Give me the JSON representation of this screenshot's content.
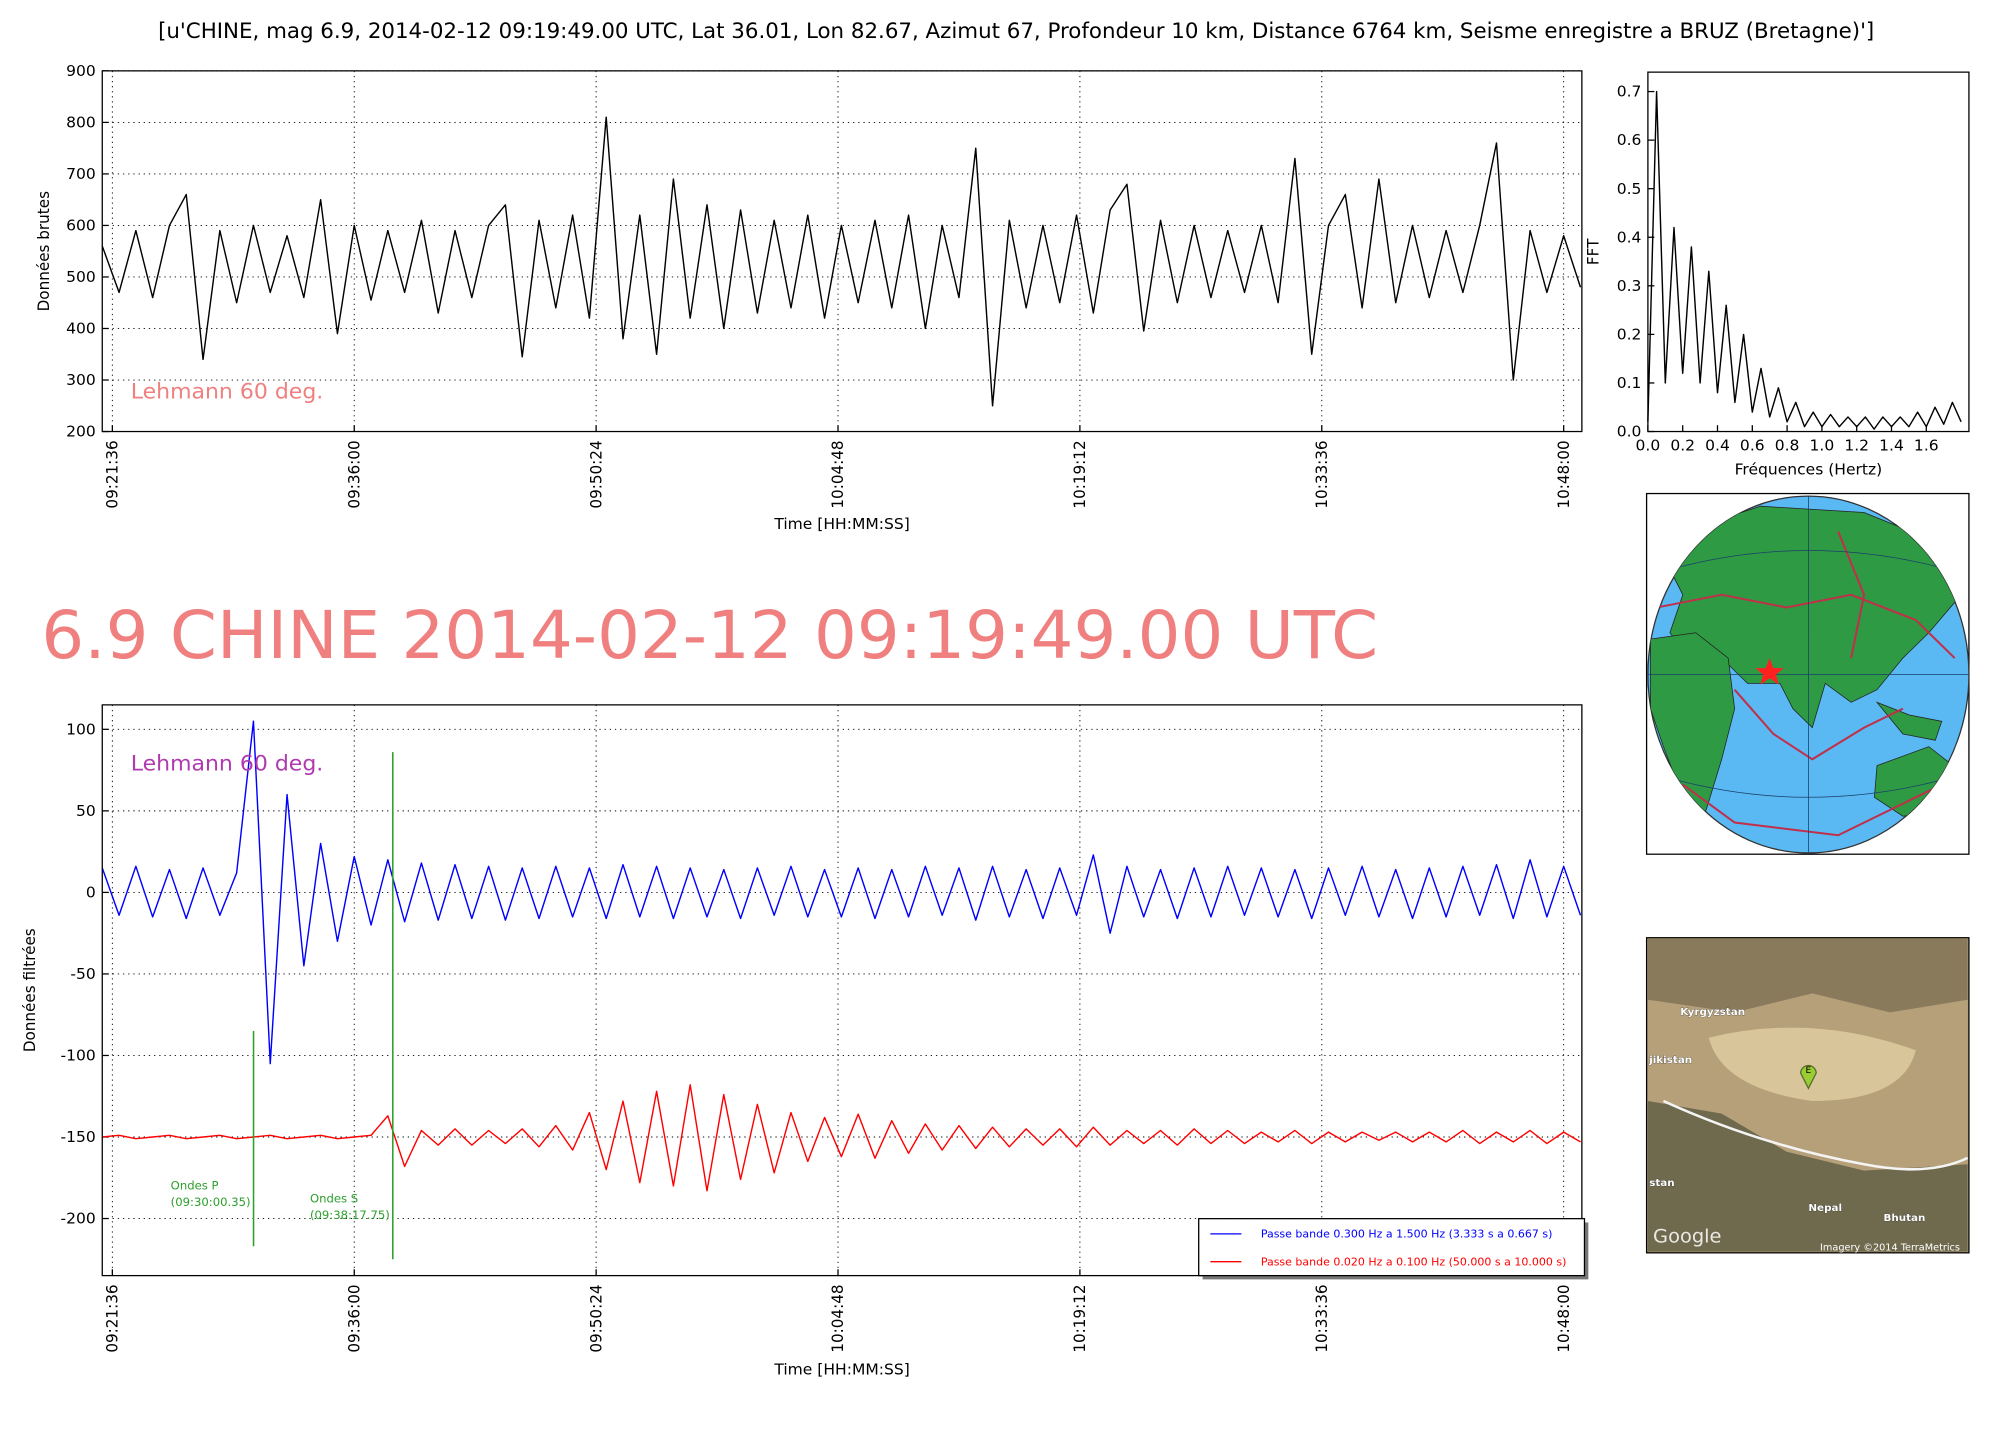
{
  "title": "[u'CHINE, mag 6.9, 2014-02-12 09:19:49.00 UTC, Lat 36.01, Lon 82.67, Azimut  67, Profondeur 10 km, Distance  6764 km, Seisme enregistre a BRUZ (Bretagne)']",
  "headline": "6.9 CHINE 2014-02-12 09:19:49.00 UTC",
  "chart_data": [
    {
      "type": "line",
      "xlabel": "Time [HH:MM:SS]",
      "ylabel": "Données brutes",
      "grid": true,
      "xlim": [
        "09:21:00",
        "10:49:05"
      ],
      "xticks": [
        "09:21:36",
        "09:36:00",
        "09:50:24",
        "10:04:48",
        "10:19:12",
        "10:33:36",
        "10:48:00"
      ],
      "ylim": [
        200,
        900
      ],
      "yticks": [
        200,
        300,
        400,
        500,
        600,
        700,
        800,
        900
      ],
      "annotation": {
        "text": "Lehmann 60 deg.",
        "color": "#f08080"
      },
      "x": [
        "09:21:00",
        "09:22:00",
        "09:23:00",
        "09:24:00",
        "09:25:00",
        "09:26:00",
        "09:27:00",
        "09:28:00",
        "09:29:00",
        "09:30:00",
        "09:31:00",
        "09:32:00",
        "09:33:00",
        "09:34:00",
        "09:35:00",
        "09:36:00",
        "09:37:00",
        "09:38:00",
        "09:39:00",
        "09:40:00",
        "09:41:00",
        "09:42:00",
        "09:43:00",
        "09:44:00",
        "09:45:00",
        "09:46:00",
        "09:47:00",
        "09:48:00",
        "09:49:00",
        "09:50:00",
        "09:51:00",
        "09:52:00",
        "09:53:00",
        "09:54:00",
        "09:55:00",
        "09:56:00",
        "09:57:00",
        "09:58:00",
        "09:59:00",
        "10:00:00",
        "10:01:00",
        "10:02:00",
        "10:03:00",
        "10:04:00",
        "10:05:00",
        "10:06:00",
        "10:07:00",
        "10:08:00",
        "10:09:00",
        "10:10:00",
        "10:11:00",
        "10:12:00",
        "10:13:00",
        "10:14:00",
        "10:15:00",
        "10:16:00",
        "10:17:00",
        "10:18:00",
        "10:19:00",
        "10:20:00",
        "10:21:00",
        "10:22:00",
        "10:23:00",
        "10:24:00",
        "10:25:00",
        "10:26:00",
        "10:27:00",
        "10:28:00",
        "10:29:00",
        "10:30:00",
        "10:31:00",
        "10:32:00",
        "10:33:00",
        "10:34:00",
        "10:35:00",
        "10:36:00",
        "10:37:00",
        "10:38:00",
        "10:39:00",
        "10:40:00",
        "10:41:00",
        "10:42:00",
        "10:43:00",
        "10:44:00",
        "10:45:00",
        "10:46:00",
        "10:47:00",
        "10:48:00",
        "10:49:00"
      ],
      "series": [
        {
          "color": "#000000",
          "values": [
            560,
            470,
            590,
            460,
            600,
            660,
            340,
            590,
            450,
            600,
            470,
            580,
            460,
            650,
            390,
            600,
            455,
            590,
            470,
            610,
            430,
            590,
            460,
            600,
            640,
            345,
            610,
            440,
            620,
            420,
            810,
            380,
            620,
            350,
            690,
            420,
            640,
            400,
            630,
            430,
            610,
            440,
            620,
            420,
            600,
            450,
            610,
            440,
            620,
            400,
            600,
            460,
            750,
            250,
            610,
            440,
            600,
            450,
            620,
            430,
            630,
            680,
            395,
            610,
            450,
            600,
            460,
            590,
            470,
            600,
            450,
            730,
            350,
            600,
            660,
            440,
            690,
            450,
            600,
            460,
            590,
            470,
            600,
            760,
            300,
            590,
            470,
            580,
            480
          ]
        }
      ]
    },
    {
      "type": "line",
      "xlabel": "Fréquences (Hertz)",
      "ylabel": "FFT",
      "grid": false,
      "xlim": [
        0,
        1.845
      ],
      "xticks": [
        {
          "value": 0,
          "label": "0.0"
        },
        {
          "value": 0.2,
          "label": "0.2"
        },
        {
          "value": 0.4,
          "label": "0.4"
        },
        {
          "value": 0.6,
          "label": "0.6"
        },
        {
          "value": 0.8,
          "label": "0.8"
        },
        {
          "value": 1,
          "label": "1.0"
        },
        {
          "value": 1.2,
          "label": "1.2"
        },
        {
          "value": 1.4,
          "label": "1.4"
        },
        {
          "value": 1.6,
          "label": "1.6"
        }
      ],
      "ylim": [
        0,
        0.74
      ],
      "yticks": [
        {
          "value": 0,
          "label": "0.0"
        },
        0.1,
        0.2,
        0.3,
        0.4,
        0.5,
        0.6,
        0.7
      ],
      "x": [
        0,
        0.05,
        0.1,
        0.15,
        0.2,
        0.25,
        0.3,
        0.35,
        0.4,
        0.45,
        0.5,
        0.55,
        0.6,
        0.65,
        0.7,
        0.75,
        0.8,
        0.85,
        0.9,
        0.95,
        1,
        1.05,
        1.1,
        1.15,
        1.2,
        1.25,
        1.3,
        1.35,
        1.4,
        1.45,
        1.5,
        1.55,
        1.6,
        1.65,
        1.7,
        1.75,
        1.8
      ],
      "series": [
        {
          "color": "#000000",
          "values": [
            0.02,
            0.7,
            0.1,
            0.42,
            0.12,
            0.38,
            0.1,
            0.33,
            0.08,
            0.26,
            0.06,
            0.2,
            0.04,
            0.13,
            0.03,
            0.09,
            0.02,
            0.06,
            0.01,
            0.04,
            0.01,
            0.035,
            0.01,
            0.03,
            0.01,
            0.03,
            0.005,
            0.03,
            0.01,
            0.03,
            0.01,
            0.04,
            0.01,
            0.05,
            0.015,
            0.06,
            0.02
          ]
        }
      ]
    },
    {
      "type": "line",
      "xlabel": "Time [HH:MM:SS]",
      "ylabel": "Données filtrées",
      "grid": true,
      "legend": "lower right",
      "xlim": [
        "09:21:00",
        "10:49:05"
      ],
      "xticks": [
        "09:21:36",
        "09:36:00",
        "09:50:24",
        "10:04:48",
        "10:19:12",
        "10:33:36",
        "10:48:00"
      ],
      "ylim": [
        -235,
        115
      ],
      "yticks": [
        -200,
        -150,
        -100,
        -50,
        0,
        50,
        100
      ],
      "annotation": {
        "text": "Lehmann 60 deg.",
        "color": "#b03ab0"
      },
      "markers": [
        {
          "x": "09:30:00.35",
          "ylim": [
            -217,
            -85
          ],
          "text": "Ondes P",
          "time": "(09:30:00.35)",
          "color": "#2ca02c"
        },
        {
          "x": "09:38:17.75",
          "ylim": [
            -225,
            86
          ],
          "text": "Ondes S",
          "time": "(09:38:17.75)",
          "color": "#2ca02c"
        }
      ],
      "x": [
        "09:21:00",
        "09:22:00",
        "09:23:00",
        "09:24:00",
        "09:25:00",
        "09:26:00",
        "09:27:00",
        "09:28:00",
        "09:29:00",
        "09:30:00",
        "09:31:00",
        "09:32:00",
        "09:33:00",
        "09:34:00",
        "09:35:00",
        "09:36:00",
        "09:37:00",
        "09:38:00",
        "09:39:00",
        "09:40:00",
        "09:41:00",
        "09:42:00",
        "09:43:00",
        "09:44:00",
        "09:45:00",
        "09:46:00",
        "09:47:00",
        "09:48:00",
        "09:49:00",
        "09:50:00",
        "09:51:00",
        "09:52:00",
        "09:53:00",
        "09:54:00",
        "09:55:00",
        "09:56:00",
        "09:57:00",
        "09:58:00",
        "09:59:00",
        "10:00:00",
        "10:01:00",
        "10:02:00",
        "10:03:00",
        "10:04:00",
        "10:05:00",
        "10:06:00",
        "10:07:00",
        "10:08:00",
        "10:09:00",
        "10:10:00",
        "10:11:00",
        "10:12:00",
        "10:13:00",
        "10:14:00",
        "10:15:00",
        "10:16:00",
        "10:17:00",
        "10:18:00",
        "10:19:00",
        "10:20:00",
        "10:21:00",
        "10:22:00",
        "10:23:00",
        "10:24:00",
        "10:25:00",
        "10:26:00",
        "10:27:00",
        "10:28:00",
        "10:29:00",
        "10:30:00",
        "10:31:00",
        "10:32:00",
        "10:33:00",
        "10:34:00",
        "10:35:00",
        "10:36:00",
        "10:37:00",
        "10:38:00",
        "10:39:00",
        "10:40:00",
        "10:41:00",
        "10:42:00",
        "10:43:00",
        "10:44:00",
        "10:45:00",
        "10:46:00",
        "10:47:00",
        "10:48:00",
        "10:49:00"
      ],
      "series": [
        {
          "name": "Passe bande 0.300 Hz a 1.500 Hz (3.333 s a 0.667 s)",
          "color": "#0000ff",
          "values": [
            15,
            -14,
            16,
            -15,
            14,
            -16,
            15,
            -14,
            12,
            105,
            -105,
            60,
            -45,
            30,
            -30,
            22,
            -20,
            20,
            -18,
            18,
            -17,
            17,
            -16,
            16,
            -17,
            15,
            -16,
            16,
            -15,
            15,
            -16,
            17,
            -15,
            16,
            -16,
            15,
            -15,
            14,
            -16,
            15,
            -14,
            16,
            -15,
            14,
            -15,
            15,
            -16,
            14,
            -15,
            16,
            -14,
            15,
            -17,
            16,
            -15,
            14,
            -16,
            15,
            -14,
            23,
            -25,
            16,
            -15,
            14,
            -16,
            15,
            -15,
            16,
            -14,
            15,
            -15,
            14,
            -16,
            15,
            -14,
            16,
            -15,
            14,
            -16,
            15,
            -15,
            16,
            -14,
            17,
            -16,
            20,
            -15,
            16,
            -14
          ]
        },
        {
          "name": "Passe bande 0.020 Hz a 0.100 Hz (50.000 s a 10.000 s)",
          "color": "#ff0000",
          "values": [
            -150,
            -149,
            -151,
            -150,
            -149,
            -151,
            -150,
            -149,
            -151,
            -150,
            -149,
            -151,
            -150,
            -149,
            -151,
            -150,
            -149,
            -137,
            -168,
            -146,
            -155,
            -145,
            -155,
            -146,
            -154,
            -145,
            -156,
            -143,
            -158,
            -135,
            -170,
            -128,
            -178,
            -122,
            -180,
            -118,
            -183,
            -124,
            -176,
            -130,
            -172,
            -135,
            -165,
            -138,
            -162,
            -136,
            -163,
            -140,
            -160,
            -142,
            -158,
            -143,
            -157,
            -144,
            -156,
            -145,
            -155,
            -145,
            -156,
            -144,
            -155,
            -146,
            -154,
            -146,
            -155,
            -145,
            -154,
            -146,
            -154,
            -147,
            -153,
            -146,
            -154,
            -147,
            -153,
            -147,
            -152,
            -147,
            -153,
            -147,
            -153,
            -146,
            -154,
            -147,
            -153,
            -146,
            -154,
            -147,
            -153
          ]
        }
      ]
    }
  ],
  "satellite_map": {
    "labels": [
      "Kyrgyzstan",
      "jikistan",
      "stan",
      "Nepal",
      "Bhutan"
    ],
    "marker": "E",
    "attribution": "Google",
    "imagery": "Imagery ©2014 TerraMetrics"
  }
}
